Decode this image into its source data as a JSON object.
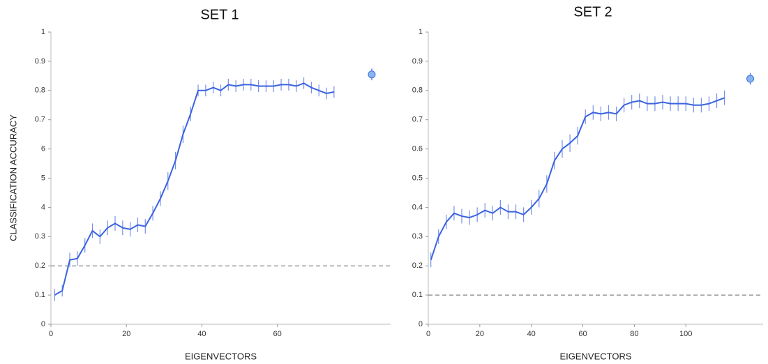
{
  "chart_data": [
    {
      "type": "line",
      "title": "SET 1",
      "x_label": "EIGENVECTORS",
      "y_label": "CLASSIFICATION ACCURACY",
      "xlim": [
        0,
        90
      ],
      "xticks": [
        0,
        20,
        40,
        60
      ],
      "ylim": [
        0,
        1
      ],
      "yticks": [
        0,
        0.1,
        0.2,
        0.3,
        {
          "value": 0.4,
          "label": "4"
        },
        {
          "value": 0.5,
          "label": "5"
        },
        {
          "value": 0.6,
          "label": "6"
        },
        0.7,
        0.8,
        0.9,
        1
      ],
      "x": [
        1,
        3,
        5,
        7,
        9,
        11,
        13,
        15,
        17,
        19,
        21,
        23,
        25,
        27,
        29,
        31,
        33,
        35,
        37,
        39,
        41,
        43,
        45,
        47,
        49,
        51,
        53,
        55,
        57,
        59,
        61,
        63,
        65,
        67,
        69,
        71,
        73,
        75
      ],
      "series": [
        {
          "color": "#3a63e0",
          "values": [
            0.1,
            0.115,
            0.22,
            0.225,
            0.27,
            0.32,
            0.3,
            0.33,
            0.345,
            0.33,
            0.325,
            0.34,
            0.335,
            0.38,
            0.43,
            0.49,
            0.56,
            0.65,
            0.72,
            0.8,
            0.8,
            0.81,
            0.8,
            0.82,
            0.815,
            0.82,
            0.82,
            0.815,
            0.815,
            0.815,
            0.82,
            0.82,
            0.815,
            0.825,
            0.81,
            0.8,
            0.79,
            0.795
          ],
          "errors": [
            0.02,
            0.02,
            0.025,
            0.025,
            0.025,
            0.025,
            0.025,
            0.025,
            0.025,
            0.025,
            0.025,
            0.025,
            0.025,
            0.025,
            0.025,
            0.03,
            0.03,
            0.03,
            0.025,
            0.02,
            0.02,
            0.02,
            0.02,
            0.02,
            0.02,
            0.02,
            0.02,
            0.02,
            0.02,
            0.02,
            0.02,
            0.02,
            0.02,
            0.02,
            0.02,
            0.02,
            0.02,
            0.02
          ]
        }
      ],
      "points": {
        "x": [
          85
        ],
        "values": [
          0.855
        ],
        "errors": [
          0.02
        ]
      },
      "reference_line": 0.2
    },
    {
      "type": "line",
      "title": "SET 2",
      "x_label": "EIGENVECTORS",
      "xlim": [
        0,
        130
      ],
      "xticks": [
        0,
        20,
        40,
        60,
        80,
        100
      ],
      "ylim": [
        0,
        1
      ],
      "yticks": [
        0,
        0.1,
        0.2,
        0.3,
        0.4,
        0.5,
        0.6,
        0.7,
        0.8,
        0.9,
        1
      ],
      "x": [
        1,
        4,
        7,
        10,
        13,
        16,
        19,
        22,
        25,
        28,
        31,
        34,
        37,
        40,
        43,
        46,
        49,
        52,
        55,
        58,
        61,
        64,
        67,
        70,
        73,
        76,
        79,
        82,
        85,
        88,
        91,
        94,
        97,
        100,
        103,
        106,
        109,
        112,
        115
      ],
      "series": [
        {
          "color": "#3a63e0",
          "values": [
            0.22,
            0.3,
            0.35,
            0.38,
            0.37,
            0.365,
            0.375,
            0.39,
            0.38,
            0.4,
            0.385,
            0.385,
            0.375,
            0.4,
            0.43,
            0.48,
            0.56,
            0.6,
            0.62,
            0.645,
            0.71,
            0.725,
            0.72,
            0.725,
            0.72,
            0.75,
            0.76,
            0.765,
            0.755,
            0.755,
            0.76,
            0.755,
            0.755,
            0.755,
            0.75,
            0.75,
            0.755,
            0.765,
            0.775
          ],
          "errors": [
            0.025,
            0.025,
            0.025,
            0.025,
            0.025,
            0.025,
            0.025,
            0.025,
            0.025,
            0.025,
            0.025,
            0.025,
            0.025,
            0.025,
            0.03,
            0.03,
            0.03,
            0.03,
            0.03,
            0.03,
            0.025,
            0.025,
            0.025,
            0.025,
            0.025,
            0.025,
            0.025,
            0.025,
            0.025,
            0.025,
            0.025,
            0.025,
            0.025,
            0.025,
            0.025,
            0.025,
            0.025,
            0.025,
            0.025
          ]
        }
      ],
      "points": {
        "x": [
          125
        ],
        "values": [
          0.84
        ],
        "errors": [
          0.02
        ]
      },
      "reference_line": 0.1
    }
  ]
}
